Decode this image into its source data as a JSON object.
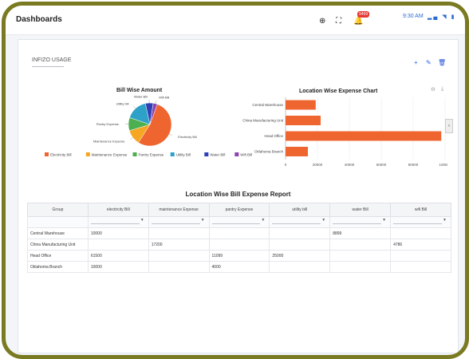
{
  "header": {
    "title": "Dashboards",
    "time": "9:30 AM",
    "status_icons": "▂▄ ◥ ▮",
    "notification_count": "9499"
  },
  "panel": {
    "tab_label": "INFIZO USAGE",
    "actions": {
      "add": "+",
      "edit": "✎",
      "delete": "🗑"
    }
  },
  "pie_chart": {
    "title": "Bill Wise Amount",
    "slice_labels": [
      "Electricity Bill",
      "Maintenance Expense",
      "Pantry Expense",
      "Utility bill",
      "Water Bill",
      "Wifi Bill"
    ],
    "legend": [
      "Electricity Bill",
      "Maintenance Expense",
      "Pantry Expense",
      "Utility Bill",
      "Water Bill",
      "Wifi Bill"
    ]
  },
  "bar_chart": {
    "title": "Location Wise Expense Chart",
    "categories": [
      "Central Warehouse",
      "China Manufacturing Unit",
      "Head Office",
      "Oklahoma Branch"
    ],
    "ticks": [
      "0",
      "20000",
      "40000",
      "60000",
      "80000",
      "100000"
    ],
    "toggle": "‹"
  },
  "chart_data": [
    {
      "type": "pie",
      "title": "Bill Wise Amount",
      "categories": [
        "Electricity Bill",
        "Maintenance Expense",
        "Pantry Expense",
        "Utility Bill",
        "Water Bill",
        "Wifi Bill"
      ],
      "values": [
        81500,
        17200,
        15099,
        25000,
        8899,
        4786
      ],
      "colors": [
        "#ef6530",
        "#f5a623",
        "#4caf50",
        "#2ea1c8",
        "#2f3fb8",
        "#8e44ad"
      ],
      "legend": "bottom"
    },
    {
      "type": "bar",
      "orientation": "horizontal",
      "title": "Location Wise Expense Chart",
      "categories": [
        "Central Warehouse",
        "China Manufacturing Unit",
        "Head Office",
        "Oklahoma Branch"
      ],
      "values": [
        18899,
        21986,
        97599,
        14000
      ],
      "xlim": [
        0,
        100000
      ],
      "color": "#ef6530",
      "grid": true
    }
  ],
  "report": {
    "title": "Location Wise Bill Expense Report",
    "columns": [
      "Group",
      "electricity Bill",
      "maintenance Expense",
      "pantry Expense",
      "utility bill",
      "water Bill",
      "wifi Bill"
    ],
    "rows": [
      [
        "Central Warehouse",
        "10000",
        "",
        "",
        "",
        "8899",
        ""
      ],
      [
        "China Manufacturing Unit",
        "",
        "17200",
        "",
        "",
        "",
        "4786"
      ],
      [
        "Head Office",
        "61500",
        "",
        "11099",
        "25000",
        "",
        ""
      ],
      [
        "Oklahoma Branch",
        "10000",
        "",
        "4000",
        "",
        "",
        ""
      ]
    ]
  }
}
